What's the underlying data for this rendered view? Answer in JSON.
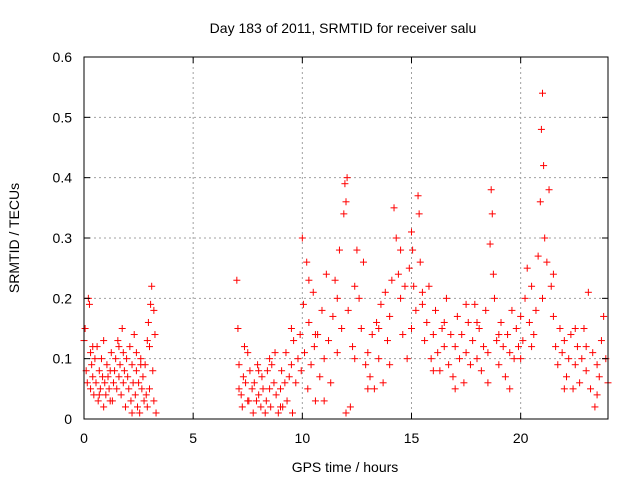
{
  "chart_data": {
    "type": "scatter",
    "title": "Day 183 of 2011, SRMTID for receiver salu",
    "xlabel": "GPS time / hours",
    "ylabel": "SRMTID / TECUs",
    "xlim": [
      0,
      24
    ],
    "ylim": [
      0,
      0.6
    ],
    "xticks": [
      "0",
      "5",
      "10",
      "15",
      "20"
    ],
    "yticks": [
      "0",
      "0.1",
      "0.2",
      "0.3",
      "0.4",
      "0.5",
      "0.6"
    ],
    "xtick_values": [
      0,
      5,
      10,
      15,
      20
    ],
    "ytick_values": [
      0,
      0.1,
      0.2,
      0.3,
      0.4,
      0.5,
      0.6
    ],
    "grid": true,
    "marker": "plus",
    "color": "#ff0000",
    "series": [
      {
        "points": [
          [
            0.0,
            0.13
          ],
          [
            0.05,
            0.15
          ],
          [
            0.1,
            0.08
          ],
          [
            0.15,
            0.06
          ],
          [
            0.2,
            0.2
          ],
          [
            0.25,
            0.19
          ],
          [
            0.3,
            0.05
          ],
          [
            0.35,
            0.09
          ],
          [
            0.4,
            0.07
          ],
          [
            0.45,
            0.04
          ],
          [
            0.5,
            0.1
          ],
          [
            0.55,
            0.06
          ],
          [
            0.6,
            0.12
          ],
          [
            0.65,
            0.03
          ],
          [
            0.7,
            0.08
          ],
          [
            0.75,
            0.05
          ],
          [
            0.8,
            0.1
          ],
          [
            0.85,
            0.07
          ],
          [
            0.9,
            0.13
          ],
          [
            0.95,
            0.06
          ],
          [
            1.0,
            0.04
          ],
          [
            1.05,
            0.09
          ],
          [
            1.1,
            0.07
          ],
          [
            1.15,
            0.05
          ],
          [
            1.2,
            0.08
          ],
          [
            1.25,
            0.11
          ],
          [
            1.3,
            0.03
          ],
          [
            1.35,
            0.06
          ],
          [
            1.4,
            0.08
          ],
          [
            1.45,
            0.1
          ],
          [
            1.5,
            0.05
          ],
          [
            1.55,
            0.13
          ],
          [
            1.6,
            0.07
          ],
          [
            1.65,
            0.09
          ],
          [
            1.7,
            0.04
          ],
          [
            1.75,
            0.15
          ],
          [
            1.8,
            0.06
          ],
          [
            1.85,
            0.08
          ],
          [
            1.9,
            0.02
          ],
          [
            1.95,
            0.1
          ],
          [
            2.0,
            0.07
          ],
          [
            2.05,
            0.05
          ],
          [
            2.1,
            0.12
          ],
          [
            2.15,
            0.03
          ],
          [
            2.2,
            0.09
          ],
          [
            2.25,
            0.06
          ],
          [
            2.3,
            0.14
          ],
          [
            2.35,
            0.04
          ],
          [
            2.4,
            0.08
          ],
          [
            2.45,
            0.02
          ],
          [
            2.5,
            0.06
          ],
          [
            2.55,
            0.01
          ],
          [
            2.6,
            0.1
          ],
          [
            2.65,
            0.05
          ],
          [
            2.7,
            0.07
          ],
          [
            2.75,
            0.03
          ],
          [
            2.8,
            0.09
          ],
          [
            2.85,
            0.04
          ],
          [
            2.9,
            0.13
          ],
          [
            2.95,
            0.16
          ],
          [
            3.0,
            0.12
          ],
          [
            3.05,
            0.19
          ],
          [
            3.1,
            0.22
          ],
          [
            3.15,
            0.08
          ],
          [
            3.2,
            0.03
          ],
          [
            3.25,
            0.14
          ],
          [
            3.3,
            0.01
          ],
          [
            0.3,
            0.11
          ],
          [
            0.7,
            0.04
          ],
          [
            1.2,
            0.03
          ],
          [
            1.8,
            0.11
          ],
          [
            2.2,
            0.01
          ],
          [
            2.6,
            0.09
          ],
          [
            3.0,
            0.05
          ],
          [
            0.4,
            0.12
          ],
          [
            0.9,
            0.02
          ],
          [
            1.6,
            0.12
          ],
          [
            2.4,
            0.11
          ],
          [
            2.9,
            0.02
          ],
          [
            3.2,
            0.18
          ],
          [
            7.0,
            0.23
          ],
          [
            7.05,
            0.15
          ],
          [
            7.1,
            0.09
          ],
          [
            7.2,
            0.04
          ],
          [
            7.25,
            0.02
          ],
          [
            7.3,
            0.07
          ],
          [
            7.35,
            0.12
          ],
          [
            7.4,
            0.06
          ],
          [
            7.5,
            0.11
          ],
          [
            7.55,
            0.03
          ],
          [
            7.6,
            0.08
          ],
          [
            7.7,
            0.05
          ],
          [
            7.75,
            0.01
          ],
          [
            7.8,
            0.06
          ],
          [
            7.9,
            0.03
          ],
          [
            7.95,
            0.09
          ],
          [
            8.0,
            0.04
          ],
          [
            8.1,
            0.02
          ],
          [
            8.15,
            0.07
          ],
          [
            8.2,
            0.05
          ],
          [
            8.3,
            0.01
          ],
          [
            8.35,
            0.03
          ],
          [
            8.4,
            0.08
          ],
          [
            8.5,
            0.05
          ],
          [
            8.55,
            0.02
          ],
          [
            8.6,
            0.09
          ],
          [
            8.7,
            0.06
          ],
          [
            8.75,
            0.11
          ],
          [
            8.8,
            0.04
          ],
          [
            8.9,
            0.01
          ],
          [
            9.0,
            0.05
          ],
          [
            9.05,
            0.08
          ],
          [
            9.1,
            0.02
          ],
          [
            9.2,
            0.06
          ],
          [
            9.25,
            0.11
          ],
          [
            9.3,
            0.03
          ],
          [
            9.4,
            0.07
          ],
          [
            9.5,
            0.09
          ],
          [
            9.55,
            0.01
          ],
          [
            9.6,
            0.13
          ],
          [
            9.7,
            0.06
          ],
          [
            9.8,
            0.1
          ],
          [
            9.9,
            0.14
          ],
          [
            9.95,
            0.08
          ],
          [
            10.0,
            0.3
          ],
          [
            10.05,
            0.19
          ],
          [
            10.1,
            0.11
          ],
          [
            10.2,
            0.26
          ],
          [
            10.25,
            0.05
          ],
          [
            10.3,
            0.16
          ],
          [
            10.4,
            0.09
          ],
          [
            10.5,
            0.21
          ],
          [
            10.55,
            0.12
          ],
          [
            10.6,
            0.03
          ],
          [
            10.7,
            0.14
          ],
          [
            10.8,
            0.07
          ],
          [
            10.9,
            0.18
          ],
          [
            11.0,
            0.1
          ],
          [
            11.1,
            0.24
          ],
          [
            11.2,
            0.13
          ],
          [
            11.3,
            0.06
          ],
          [
            11.4,
            0.17
          ],
          [
            11.5,
            0.23
          ],
          [
            11.6,
            0.11
          ],
          [
            11.7,
            0.28
          ],
          [
            11.8,
            0.15
          ],
          [
            11.9,
            0.34
          ],
          [
            11.95,
            0.39
          ],
          [
            12.0,
            0.36
          ],
          [
            12.05,
            0.4
          ],
          [
            12.1,
            0.18
          ],
          [
            12.2,
            0.02
          ],
          [
            12.3,
            0.12
          ],
          [
            12.4,
            0.22
          ],
          [
            12.5,
            0.28
          ],
          [
            12.6,
            0.2
          ],
          [
            12.7,
            0.15
          ],
          [
            12.8,
            0.26
          ],
          [
            12.9,
            0.09
          ],
          [
            13.0,
            0.11
          ],
          [
            13.1,
            0.07
          ],
          [
            13.2,
            0.14
          ],
          [
            13.3,
            0.05
          ],
          [
            13.4,
            0.16
          ],
          [
            13.5,
            0.1
          ],
          [
            13.6,
            0.19
          ],
          [
            13.7,
            0.06
          ],
          [
            13.8,
            0.21
          ],
          [
            13.9,
            0.13
          ],
          [
            14.0,
            0.17
          ],
          [
            14.1,
            0.23
          ],
          [
            14.2,
            0.35
          ],
          [
            14.3,
            0.3
          ],
          [
            14.4,
            0.24
          ],
          [
            14.5,
            0.2
          ],
          [
            14.6,
            0.14
          ],
          [
            14.7,
            0.22
          ],
          [
            14.8,
            0.1
          ],
          [
            14.9,
            0.25
          ],
          [
            15.0,
            0.31
          ],
          [
            15.05,
            0.28
          ],
          [
            15.1,
            0.22
          ],
          [
            15.2,
            0.18
          ],
          [
            15.3,
            0.37
          ],
          [
            15.35,
            0.34
          ],
          [
            15.4,
            0.26
          ],
          [
            15.5,
            0.19
          ],
          [
            15.6,
            0.13
          ],
          [
            15.7,
            0.16
          ],
          [
            15.8,
            0.22
          ],
          [
            15.9,
            0.1
          ],
          [
            16.0,
            0.14
          ],
          [
            16.1,
            0.18
          ],
          [
            16.2,
            0.11
          ],
          [
            16.3,
            0.08
          ],
          [
            16.4,
            0.15
          ],
          [
            16.5,
            0.12
          ],
          [
            16.6,
            0.2
          ],
          [
            16.7,
            0.09
          ],
          [
            16.8,
            0.14
          ],
          [
            16.9,
            0.07
          ],
          [
            17.0,
            0.12
          ],
          [
            17.1,
            0.17
          ],
          [
            17.2,
            0.1
          ],
          [
            17.3,
            0.14
          ],
          [
            17.4,
            0.06
          ],
          [
            17.5,
            0.11
          ],
          [
            17.6,
            0.16
          ],
          [
            17.7,
            0.09
          ],
          [
            17.8,
            0.13
          ],
          [
            17.9,
            0.19
          ],
          [
            18.0,
            0.1
          ],
          [
            18.1,
            0.15
          ],
          [
            18.2,
            0.08
          ],
          [
            18.3,
            0.12
          ],
          [
            18.4,
            0.18
          ],
          [
            18.5,
            0.11
          ],
          [
            18.6,
            0.29
          ],
          [
            18.65,
            0.38
          ],
          [
            18.7,
            0.34
          ],
          [
            18.75,
            0.24
          ],
          [
            18.8,
            0.2
          ],
          [
            18.9,
            0.13
          ],
          [
            19.0,
            0.09
          ],
          [
            19.1,
            0.16
          ],
          [
            19.2,
            0.12
          ],
          [
            19.3,
            0.07
          ],
          [
            19.4,
            0.14
          ],
          [
            19.5,
            0.11
          ],
          [
            19.6,
            0.18
          ],
          [
            19.7,
            0.1
          ],
          [
            19.8,
            0.15
          ],
          [
            19.9,
            0.12
          ],
          [
            20.0,
            0.17
          ],
          [
            20.1,
            0.13
          ],
          [
            20.2,
            0.2
          ],
          [
            20.3,
            0.25
          ],
          [
            20.4,
            0.16
          ],
          [
            20.5,
            0.22
          ],
          [
            20.6,
            0.14
          ],
          [
            20.7,
            0.18
          ],
          [
            20.8,
            0.27
          ],
          [
            20.9,
            0.36
          ],
          [
            20.95,
            0.48
          ],
          [
            21.0,
            0.54
          ],
          [
            21.05,
            0.42
          ],
          [
            21.1,
            0.3
          ],
          [
            21.2,
            0.26
          ],
          [
            21.3,
            0.38
          ],
          [
            21.4,
            0.22
          ],
          [
            21.5,
            0.17
          ],
          [
            21.6,
            0.12
          ],
          [
            21.7,
            0.09
          ],
          [
            21.8,
            0.15
          ],
          [
            21.9,
            0.11
          ],
          [
            22.0,
            0.13
          ],
          [
            22.1,
            0.07
          ],
          [
            22.2,
            0.1
          ],
          [
            22.3,
            0.14
          ],
          [
            22.4,
            0.05
          ],
          [
            22.5,
            0.09
          ],
          [
            22.6,
            0.12
          ],
          [
            22.7,
            0.06
          ],
          [
            22.8,
            0.1
          ],
          [
            22.9,
            0.15
          ],
          [
            23.0,
            0.08
          ],
          [
            23.1,
            0.21
          ],
          [
            23.2,
            0.05
          ],
          [
            23.3,
            0.11
          ],
          [
            23.4,
            0.02
          ],
          [
            23.5,
            0.09
          ],
          [
            23.6,
            0.07
          ],
          [
            23.7,
            0.13
          ],
          [
            23.8,
            0.17
          ],
          [
            23.9,
            0.1
          ],
          [
            24.0,
            0.06
          ],
          [
            10.3,
            0.23
          ],
          [
            10.6,
            0.14
          ],
          [
            11.0,
            0.03
          ],
          [
            11.6,
            0.2
          ],
          [
            12.0,
            0.01
          ],
          [
            12.4,
            0.1
          ],
          [
            13.0,
            0.05
          ],
          [
            13.5,
            0.15
          ],
          [
            14.0,
            0.09
          ],
          [
            14.5,
            0.28
          ],
          [
            15.0,
            0.15
          ],
          [
            15.5,
            0.21
          ],
          [
            16.0,
            0.08
          ],
          [
            16.5,
            0.16
          ],
          [
            17.0,
            0.05
          ],
          [
            17.5,
            0.19
          ],
          [
            18.0,
            0.16
          ],
          [
            18.5,
            0.06
          ],
          [
            19.0,
            0.14
          ],
          [
            19.5,
            0.05
          ],
          [
            20.0,
            0.1
          ],
          [
            20.5,
            0.12
          ],
          [
            21.0,
            0.2
          ],
          [
            21.5,
            0.24
          ],
          [
            22.0,
            0.05
          ],
          [
            22.5,
            0.15
          ],
          [
            23.0,
            0.12
          ],
          [
            23.5,
            0.04
          ],
          [
            9.5,
            0.15
          ],
          [
            9.0,
            0.02
          ],
          [
            8.5,
            0.1
          ],
          [
            8.0,
            0.08
          ],
          [
            7.5,
            0.03
          ],
          [
            7.1,
            0.05
          ]
        ]
      }
    ]
  }
}
